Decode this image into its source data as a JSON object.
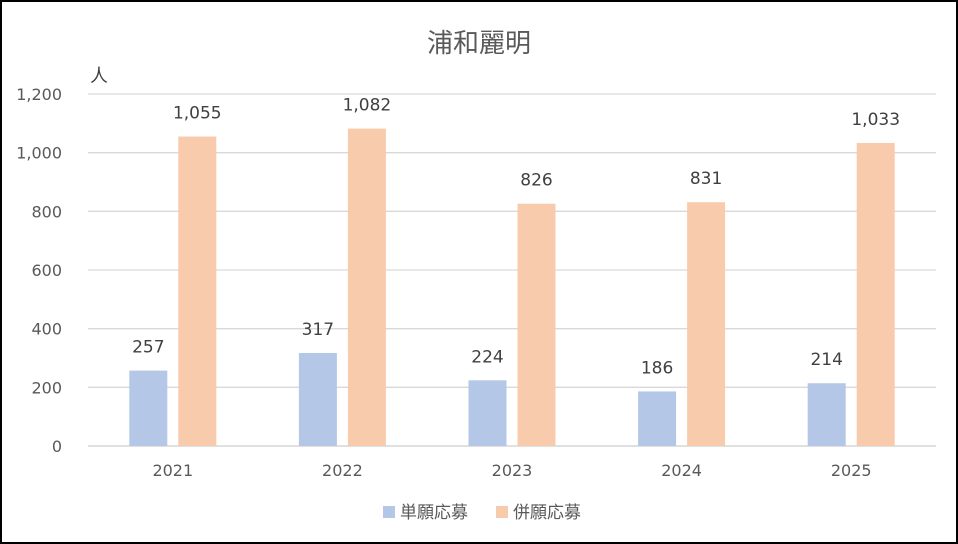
{
  "chart_data": {
    "type": "bar",
    "title": "浦和麗明",
    "ylabel": "人",
    "xlabel": "",
    "categories": [
      "2021",
      "2022",
      "2023",
      "2024",
      "2025"
    ],
    "ylim": [
      0,
      1200
    ],
    "yticks": [
      0,
      200,
      400,
      600,
      800,
      1000,
      1200
    ],
    "ytick_labels": [
      "0",
      "200",
      "400",
      "600",
      "800",
      "1,000",
      "1,200"
    ],
    "grid": true,
    "legend": "bottom",
    "series": [
      {
        "name": "単願応募",
        "color": "#b4c7e7",
        "values": [
          257,
          317,
          224,
          186,
          214
        ],
        "labels": [
          "257",
          "317",
          "224",
          "186",
          "214"
        ]
      },
      {
        "name": "併願応募",
        "color": "#f8cbad",
        "values": [
          1055,
          1082,
          826,
          831,
          1033
        ],
        "labels": [
          "1,055",
          "1,082",
          "826",
          "831",
          "1,033"
        ]
      }
    ]
  }
}
